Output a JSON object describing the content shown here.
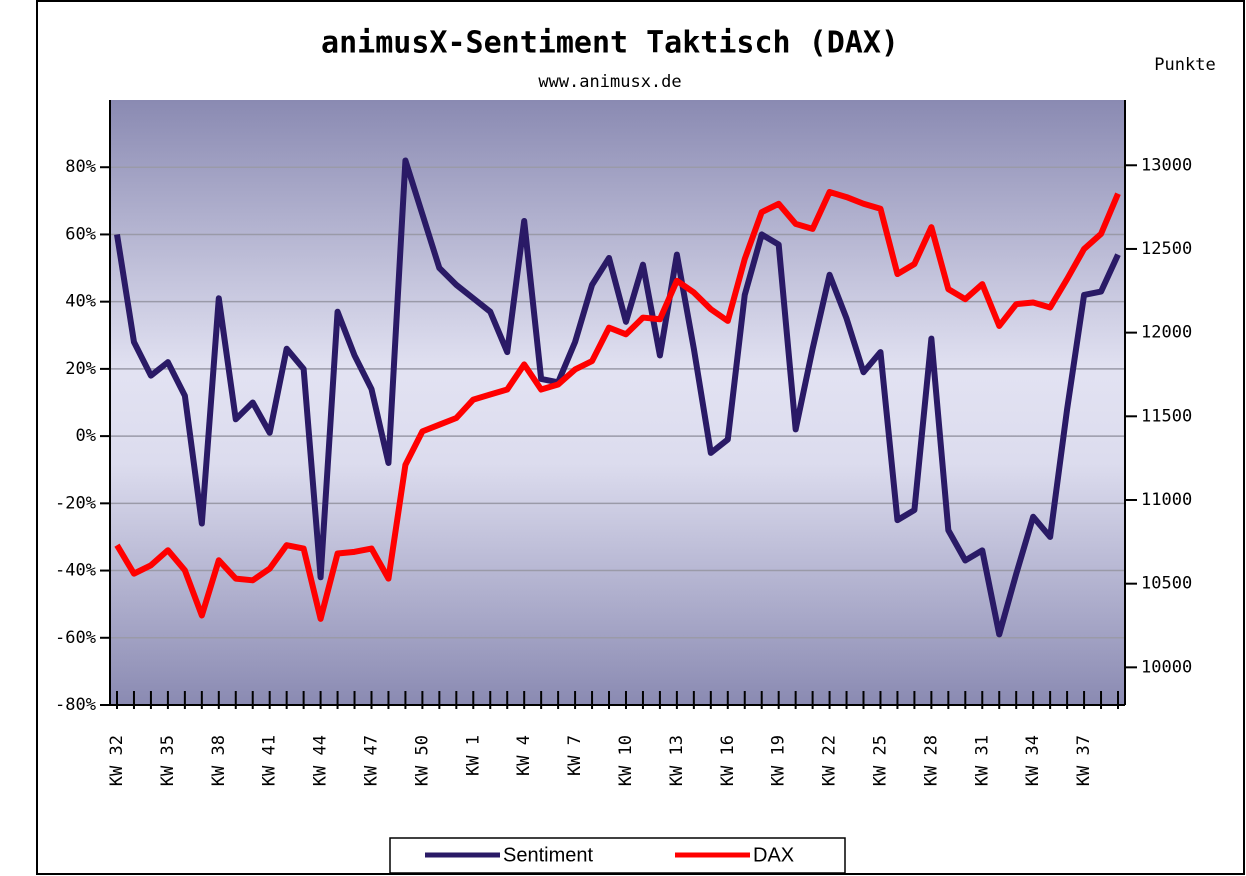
{
  "chart_data": {
    "type": "line",
    "title": "animusX-Sentiment Taktisch (DAX)",
    "subtitle": "www.animusx.de",
    "y2_axis_label": "Punkte",
    "categories": [
      "KW 32",
      null,
      null,
      "KW 35",
      null,
      null,
      "KW 38",
      null,
      null,
      "KW 41",
      null,
      null,
      "KW 44",
      null,
      null,
      "KW 47",
      null,
      null,
      "KW 50",
      null,
      null,
      "KW 1",
      null,
      null,
      "KW 4",
      null,
      null,
      "KW 7",
      null,
      null,
      "KW 10",
      null,
      null,
      "KW 13",
      null,
      null,
      "KW 16",
      null,
      null,
      "KW 19",
      null,
      null,
      "KW 22",
      null,
      null,
      "KW 25",
      null,
      null,
      "KW 28",
      null,
      null,
      "KW 31",
      null,
      null,
      "KW 34",
      null,
      null,
      "KW 37",
      null,
      null
    ],
    "series": [
      {
        "name": "Sentiment",
        "color": "#2a1a66",
        "axis": "y",
        "values": [
          60,
          28,
          18,
          22,
          12,
          -26,
          41,
          5,
          10,
          1,
          26,
          20,
          -42,
          37,
          24,
          14,
          -8,
          82,
          66,
          50,
          45,
          41,
          37,
          25,
          64,
          17,
          16,
          28,
          45,
          53,
          34,
          51,
          24,
          54,
          26,
          -5,
          -1,
          42,
          60,
          57,
          2,
          26,
          48,
          35,
          19,
          25,
          -25,
          -22,
          29,
          -28,
          -37,
          -34,
          -59,
          -41,
          -24,
          -30,
          8,
          42,
          43,
          54
        ]
      },
      {
        "name": "DAX",
        "color": "#ff0000",
        "axis": "y2",
        "values": [
          10730,
          10560,
          10610,
          10700,
          10580,
          10310,
          10640,
          10530,
          10520,
          10590,
          10730,
          10710,
          10290,
          10680,
          10690,
          10710,
          10530,
          11210,
          11410,
          11450,
          11490,
          11600,
          11630,
          11660,
          11810,
          11660,
          11690,
          11780,
          11830,
          12030,
          11990,
          12090,
          12080,
          12310,
          12240,
          12140,
          12070,
          12440,
          12720,
          12770,
          12650,
          12620,
          12840,
          12810,
          12770,
          12740,
          12350,
          12410,
          12630,
          12260,
          12200,
          12290,
          12040,
          12170,
          12180,
          12150,
          12320,
          12500,
          12590,
          12830
        ]
      }
    ],
    "ylim": [
      -80,
      100
    ],
    "yticks": [
      {
        "value": -80,
        "label": "-80%"
      },
      {
        "value": -60,
        "label": "-60%"
      },
      {
        "value": -40,
        "label": "-40%"
      },
      {
        "value": -20,
        "label": "-20%"
      },
      {
        "value": 0,
        "label": "0%"
      },
      {
        "value": 20,
        "label": "20%"
      },
      {
        "value": 40,
        "label": "40%"
      },
      {
        "value": 60,
        "label": "60%"
      },
      {
        "value": 80,
        "label": "80%"
      }
    ],
    "y2lim": [
      9775,
      13390
    ],
    "y2ticks": [
      10000,
      10500,
      11000,
      11500,
      12000,
      12500,
      13000
    ],
    "grid": true
  }
}
